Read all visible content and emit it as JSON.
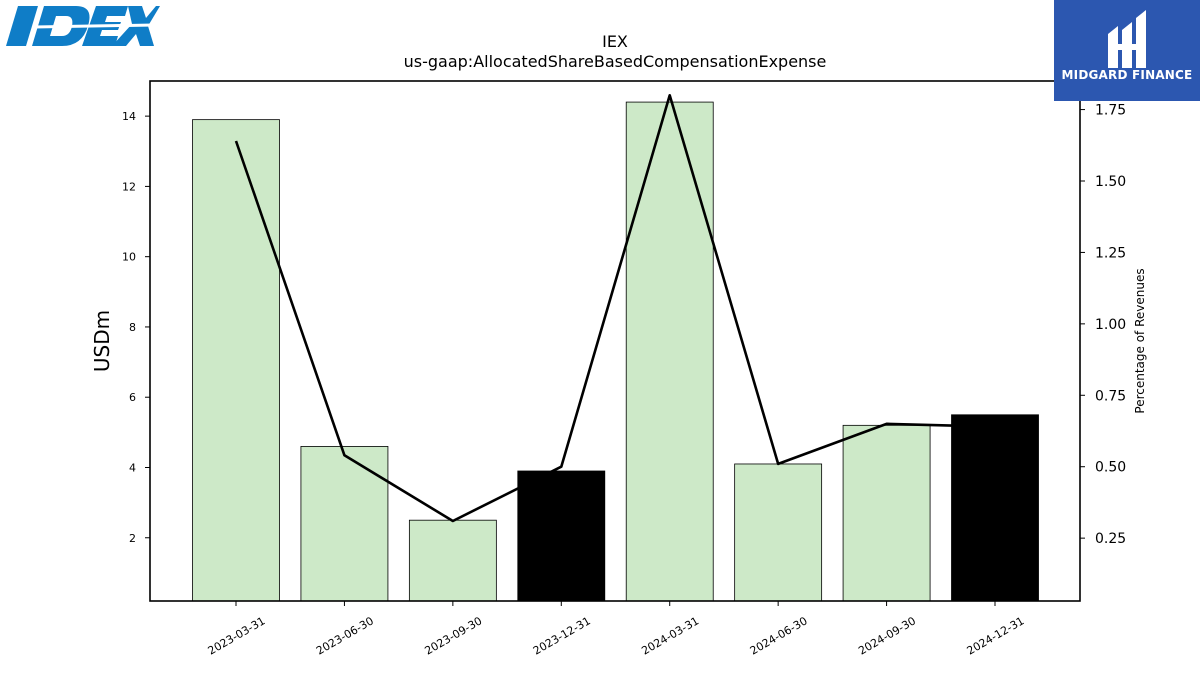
{
  "brand": {
    "logo_text": "IDEX",
    "logo_color": "#0f7dc7"
  },
  "watermark": {
    "text": "MIDGARD FINANCE",
    "bg_color": "#2c57b0"
  },
  "chart_data": {
    "type": "bar",
    "title": "IEX",
    "subtitle": "us-gaap:AllocatedShareBasedCompensationExpense",
    "categories": [
      "2023-03-31",
      "2023-06-30",
      "2023-09-30",
      "2023-12-31",
      "2024-03-31",
      "2024-06-30",
      "2024-09-30",
      "2024-12-31"
    ],
    "series": [
      {
        "values": [
          13.9,
          4.6,
          2.5,
          3.9,
          14.4,
          4.1,
          5.2,
          5.5
        ],
        "axis": "left",
        "colors": [
          "#cde9c8",
          "#cde9c8",
          "#cde9c8",
          "#000000",
          "#cde9c8",
          "#cde9c8",
          "#cde9c8",
          "#000000"
        ]
      },
      {
        "values": [
          1.64,
          0.54,
          0.31,
          0.5,
          1.8,
          0.51,
          0.65,
          0.64
        ],
        "axis": "right",
        "type": "line",
        "color": "#000000"
      }
    ],
    "ylabel": "USDm",
    "y2label": "Percentage of Revenues",
    "ylim": [
      0.2,
      15.0
    ],
    "y2lim": [
      0.03,
      1.85
    ],
    "yticks": [
      2,
      4,
      6,
      8,
      10,
      12,
      14
    ],
    "y2ticks": [
      0.25,
      0.5,
      0.75,
      1.0,
      1.25,
      1.5,
      1.75
    ],
    "grid": false,
    "legend": "none"
  }
}
